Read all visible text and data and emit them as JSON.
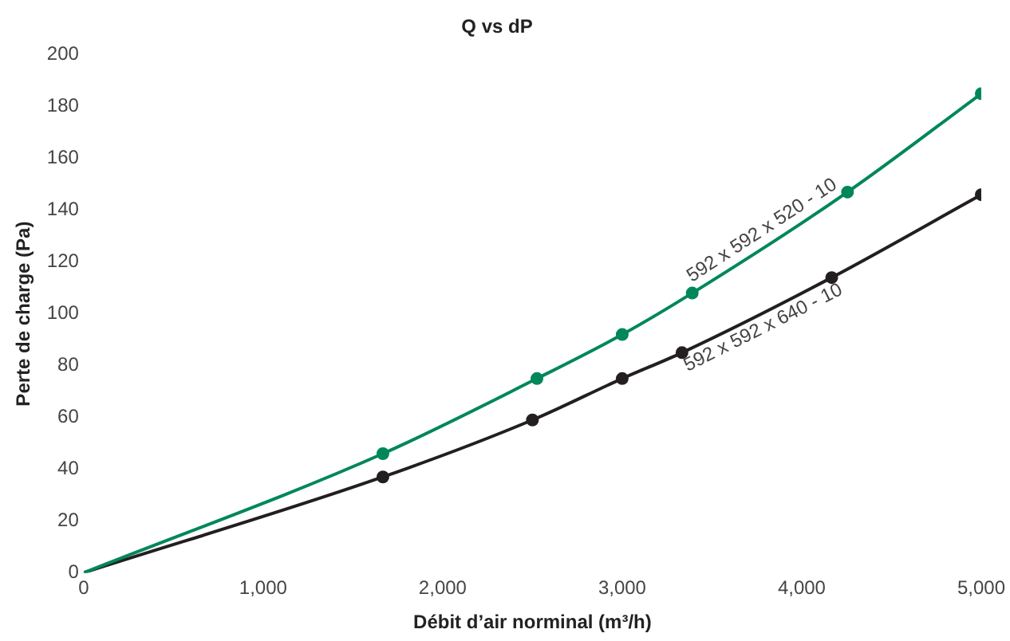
{
  "chart_data": {
    "type": "line",
    "title": "Q vs dP",
    "xlabel": "Débit d’air norminal (m³/h)",
    "ylabel": "Perte de charge (Pa)",
    "xlim": [
      0,
      5000
    ],
    "xticks": [
      {
        "value": 0,
        "label": "0"
      },
      {
        "value": 1000,
        "label": "1,000"
      },
      {
        "value": 2000,
        "label": "2,000"
      },
      {
        "value": 3000,
        "label": "3,000"
      },
      {
        "value": 4000,
        "label": "4,000"
      },
      {
        "value": 5000,
        "label": "5,000"
      }
    ],
    "ylim": [
      0,
      200
    ],
    "yticks": [
      0,
      20,
      40,
      60,
      80,
      100,
      120,
      140,
      160,
      180,
      200
    ],
    "series": [
      {
        "name": "592 x 592 x 520 - 10",
        "color": "#00875a",
        "x": [
          0,
          1667,
          2525,
          3000,
          3390,
          4255,
          5000
        ],
        "values": [
          0,
          46,
          75,
          92,
          108,
          147,
          185
        ]
      },
      {
        "name": "592 x 592 x 640 - 10",
        "color": "#231f20",
        "x": [
          0,
          1667,
          2500,
          3000,
          3333,
          4167,
          5000
        ],
        "values": [
          0,
          37,
          59,
          75,
          85,
          114,
          146
        ]
      }
    ],
    "marker": "circle",
    "grid": false,
    "legend": false
  }
}
